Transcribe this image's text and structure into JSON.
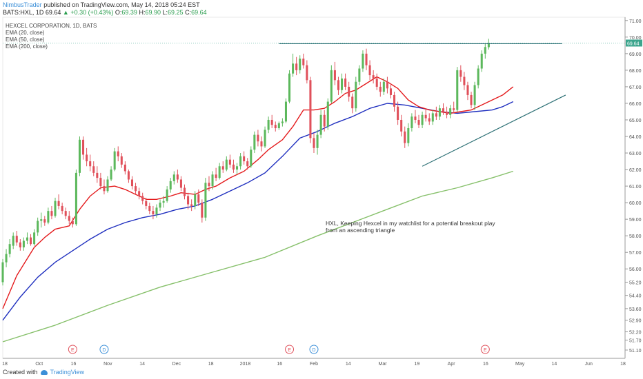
{
  "header": {
    "author": "NimbusTrader",
    "published_text": " published on TradingView.com, May 14, 2018 05:24 EST"
  },
  "ohlc": {
    "symbol": "BATS:HXL, 1D",
    "last": "69.64",
    "change": "▲ +0.30 (+0.43%)",
    "open_label": "O:",
    "open": "69.39",
    "high_label": "H:",
    "high": "69.90",
    "low_label": "L:",
    "low": "69.25",
    "close_label": "C:",
    "close": "69.64"
  },
  "legend": {
    "name": "HEXCEL CORPORATION, 1D, BATS",
    "ema20": "EMA (20, close)",
    "ema50": "EMA (50, close)",
    "ema200": "EMA (200, close)"
  },
  "footer": {
    "created_with": "Created with",
    "tv": "TradingView"
  },
  "colors": {
    "up": "#5cb85c",
    "down": "#e0505a",
    "ema20": "#e41a1c",
    "ema50": "#1f2fbf",
    "ema200": "#86c06a",
    "trend": "#2b6f74",
    "price": "#3ca58d"
  },
  "chart_data": {
    "type": "candlestick",
    "ylim": [
      50.6,
      71.2
    ],
    "y_ticks": [
      "71.00",
      "70.00",
      "69.00",
      "68.00",
      "67.00",
      "66.00",
      "65.00",
      "64.00",
      "63.00",
      "62.00",
      "61.00",
      "60.00",
      "59.00",
      "58.00",
      "57.00",
      "56.00",
      "55.20",
      "54.40",
      "53.60",
      "52.90",
      "52.20",
      "51.70",
      "51.10"
    ],
    "x_ticks": [
      "18",
      "Oct",
      "16",
      "Nov",
      "14",
      "Dec",
      "18",
      "2018",
      "16",
      "Feb",
      "14",
      "Mar",
      "19",
      "Apr",
      "16",
      "May",
      "14",
      "Jun",
      "18"
    ],
    "x_index_range": [
      0,
      178
    ],
    "price_label": "69.64",
    "annotation": "HXL, Keeping Hexcel in my watchlist for a potential breakout play\nfrom an ascending triangle",
    "events": [
      {
        "type": "E",
        "index": 20,
        "color": "#e0505a"
      },
      {
        "type": "D",
        "index": 29,
        "color": "#3b8fd8"
      },
      {
        "type": "E",
        "index": 82,
        "color": "#e0505a"
      },
      {
        "type": "D",
        "index": 89,
        "color": "#3b8fd8"
      },
      {
        "type": "E",
        "index": 138,
        "color": "#e0505a"
      }
    ],
    "resistance_line": {
      "from": [
        79,
        69.6
      ],
      "to": [
        160,
        69.6
      ]
    },
    "support_line": {
      "from": [
        120,
        62.2
      ],
      "to": [
        161,
        66.5
      ]
    },
    "candles": [
      [
        55.2,
        56.6,
        55.0,
        56.4
      ],
      [
        56.4,
        57.2,
        56.1,
        56.9
      ],
      [
        56.9,
        57.8,
        56.7,
        57.5
      ],
      [
        57.4,
        58.2,
        57.2,
        58.0
      ],
      [
        58.0,
        58.3,
        57.4,
        57.6
      ],
      [
        57.6,
        57.8,
        57.1,
        57.3
      ],
      [
        57.3,
        57.9,
        57.1,
        57.7
      ],
      [
        57.7,
        58.2,
        57.5,
        57.9
      ],
      [
        57.9,
        58.1,
        57.4,
        57.5
      ],
      [
        57.5,
        58.4,
        57.4,
        58.2
      ],
      [
        58.2,
        59.1,
        58.0,
        58.9
      ],
      [
        58.9,
        59.4,
        58.5,
        59.0
      ],
      [
        59.0,
        59.2,
        58.6,
        58.8
      ],
      [
        58.8,
        59.7,
        58.7,
        59.5
      ],
      [
        59.5,
        59.8,
        59.0,
        59.2
      ],
      [
        59.2,
        60.3,
        59.1,
        60.1
      ],
      [
        60.1,
        60.5,
        59.6,
        59.8
      ],
      [
        59.8,
        60.0,
        59.3,
        59.5
      ],
      [
        59.5,
        59.7,
        59.0,
        59.2
      ],
      [
        59.2,
        59.5,
        58.7,
        58.9
      ],
      [
        58.9,
        59.1,
        58.5,
        58.7
      ],
      [
        58.7,
        62.0,
        58.6,
        61.8
      ],
      [
        61.8,
        64.0,
        61.6,
        63.8
      ],
      [
        63.8,
        64.0,
        62.6,
        62.9
      ],
      [
        62.9,
        63.3,
        62.2,
        62.5
      ],
      [
        62.5,
        62.9,
        61.9,
        62.2
      ],
      [
        62.2,
        62.5,
        61.6,
        61.8
      ],
      [
        61.8,
        62.2,
        61.2,
        61.5
      ],
      [
        61.5,
        61.8,
        60.8,
        61.0
      ],
      [
        61.0,
        61.4,
        60.5,
        60.7
      ],
      [
        60.7,
        61.6,
        60.6,
        61.4
      ],
      [
        61.4,
        62.2,
        61.3,
        62.0
      ],
      [
        62.0,
        63.3,
        61.9,
        63.1
      ],
      [
        63.1,
        63.4,
        62.5,
        62.8
      ],
      [
        62.8,
        63.0,
        62.1,
        62.3
      ],
      [
        62.3,
        62.5,
        61.7,
        61.9
      ],
      [
        61.9,
        62.0,
        61.2,
        61.4
      ],
      [
        61.4,
        61.6,
        60.8,
        61.0
      ],
      [
        61.0,
        61.2,
        60.5,
        60.7
      ],
      [
        60.7,
        60.9,
        60.2,
        60.4
      ],
      [
        60.4,
        60.6,
        59.9,
        60.1
      ],
      [
        60.1,
        60.3,
        59.6,
        59.8
      ],
      [
        59.8,
        60.0,
        59.3,
        59.5
      ],
      [
        59.5,
        59.8,
        59.0,
        59.3
      ],
      [
        59.3,
        59.9,
        59.1,
        59.7
      ],
      [
        59.7,
        60.2,
        59.5,
        60.0
      ],
      [
        60.0,
        60.4,
        59.7,
        60.1
      ],
      [
        60.1,
        61.0,
        60.0,
        60.8
      ],
      [
        60.8,
        61.5,
        60.6,
        61.3
      ],
      [
        61.3,
        61.9,
        61.1,
        61.7
      ],
      [
        61.7,
        62.0,
        61.2,
        61.4
      ],
      [
        61.4,
        61.6,
        60.7,
        60.9
      ],
      [
        60.9,
        61.1,
        60.2,
        60.4
      ],
      [
        60.4,
        60.6,
        59.6,
        59.9
      ],
      [
        59.9,
        60.2,
        59.5,
        59.8
      ],
      [
        59.8,
        60.7,
        59.6,
        60.5
      ],
      [
        60.5,
        60.8,
        59.8,
        60.0
      ],
      [
        60.0,
        60.2,
        58.8,
        59.1
      ],
      [
        59.1,
        61.5,
        58.9,
        61.2
      ],
      [
        61.2,
        61.6,
        60.7,
        61.0
      ],
      [
        61.0,
        61.9,
        60.8,
        61.7
      ],
      [
        61.7,
        62.1,
        61.3,
        61.5
      ],
      [
        61.5,
        62.4,
        61.4,
        62.2
      ],
      [
        62.2,
        62.5,
        61.8,
        62.0
      ],
      [
        62.0,
        62.8,
        61.9,
        62.6
      ],
      [
        62.6,
        62.9,
        62.1,
        62.3
      ],
      [
        62.3,
        62.6,
        61.8,
        62.0
      ],
      [
        62.0,
        62.4,
        61.7,
        62.2
      ],
      [
        62.2,
        63.0,
        62.0,
        62.8
      ],
      [
        62.8,
        63.1,
        62.3,
        62.5
      ],
      [
        62.5,
        62.7,
        62.0,
        62.2
      ],
      [
        62.2,
        63.4,
        62.1,
        63.2
      ],
      [
        63.2,
        64.3,
        63.0,
        64.1
      ],
      [
        64.1,
        64.4,
        63.4,
        63.7
      ],
      [
        63.7,
        64.0,
        63.1,
        63.4
      ],
      [
        63.4,
        64.6,
        63.3,
        64.4
      ],
      [
        64.4,
        65.2,
        64.2,
        65.0
      ],
      [
        65.0,
        65.3,
        64.5,
        64.7
      ],
      [
        64.7,
        64.9,
        64.3,
        64.5
      ],
      [
        64.5,
        64.9,
        64.4,
        64.8
      ],
      [
        64.8,
        65.1,
        64.6,
        64.9
      ],
      [
        64.9,
        66.3,
        64.8,
        66.1
      ],
      [
        66.1,
        68.0,
        66.0,
        67.8
      ],
      [
        67.8,
        69.0,
        67.6,
        68.4
      ],
      [
        68.4,
        68.8,
        67.7,
        68.0
      ],
      [
        68.0,
        68.9,
        67.8,
        68.7
      ],
      [
        68.7,
        69.0,
        68.1,
        68.3
      ],
      [
        68.3,
        68.6,
        67.2,
        67.4
      ],
      [
        67.4,
        67.6,
        63.6,
        63.9
      ],
      [
        63.9,
        64.2,
        63.0,
        63.3
      ],
      [
        63.3,
        64.4,
        62.9,
        64.1
      ],
      [
        64.1,
        65.6,
        63.9,
        65.3
      ],
      [
        65.3,
        65.6,
        64.3,
        64.6
      ],
      [
        64.6,
        66.3,
        64.4,
        66.1
      ],
      [
        66.1,
        68.3,
        66.0,
        68.0
      ],
      [
        68.0,
        68.5,
        67.1,
        67.4
      ],
      [
        67.4,
        67.6,
        66.5,
        66.8
      ],
      [
        66.8,
        67.8,
        66.6,
        67.5
      ],
      [
        67.5,
        67.8,
        66.8,
        67.0
      ],
      [
        67.0,
        67.3,
        66.1,
        66.4
      ],
      [
        66.4,
        66.6,
        65.4,
        65.7
      ],
      [
        65.7,
        67.6,
        65.5,
        67.3
      ],
      [
        67.3,
        68.3,
        67.1,
        68.1
      ],
      [
        68.1,
        69.2,
        67.9,
        69.0
      ],
      [
        69.0,
        69.3,
        68.0,
        68.3
      ],
      [
        68.3,
        68.6,
        67.4,
        67.7
      ],
      [
        67.7,
        68.0,
        67.2,
        67.5
      ],
      [
        67.5,
        67.8,
        66.8,
        67.0
      ],
      [
        67.0,
        67.3,
        66.4,
        66.7
      ],
      [
        66.7,
        67.5,
        66.5,
        67.3
      ],
      [
        67.3,
        67.6,
        66.6,
        66.9
      ],
      [
        66.9,
        67.2,
        66.3,
        66.5
      ],
      [
        66.5,
        66.7,
        65.5,
        65.8
      ],
      [
        65.8,
        66.1,
        64.7,
        65.0
      ],
      [
        65.0,
        65.3,
        64.0,
        64.3
      ],
      [
        64.3,
        64.6,
        63.3,
        63.6
      ],
      [
        63.6,
        64.8,
        63.4,
        64.5
      ],
      [
        64.5,
        65.4,
        64.3,
        65.2
      ],
      [
        65.2,
        65.6,
        64.8,
        65.0
      ],
      [
        65.0,
        65.3,
        64.5,
        64.7
      ],
      [
        64.7,
        65.5,
        64.5,
        65.3
      ],
      [
        65.3,
        65.7,
        64.9,
        65.1
      ],
      [
        65.1,
        65.4,
        64.7,
        64.9
      ],
      [
        64.9,
        65.6,
        64.7,
        65.4
      ],
      [
        65.4,
        65.8,
        65.0,
        65.2
      ],
      [
        65.2,
        65.9,
        65.0,
        65.7
      ],
      [
        65.7,
        66.0,
        65.3,
        65.5
      ],
      [
        65.5,
        65.8,
        65.1,
        65.3
      ],
      [
        65.3,
        65.9,
        65.1,
        65.7
      ],
      [
        65.7,
        66.1,
        65.4,
        65.6
      ],
      [
        65.6,
        68.2,
        65.5,
        68.0
      ],
      [
        68.0,
        68.3,
        67.3,
        67.6
      ],
      [
        67.6,
        67.9,
        66.8,
        67.1
      ],
      [
        67.1,
        67.3,
        66.2,
        66.5
      ],
      [
        66.5,
        66.7,
        65.7,
        65.9
      ],
      [
        65.9,
        67.3,
        65.6,
        67.1
      ],
      [
        67.1,
        68.3,
        66.9,
        68.1
      ],
      [
        68.1,
        69.2,
        67.9,
        69.0
      ],
      [
        69.0,
        69.6,
        68.7,
        69.4
      ],
      [
        69.39,
        69.9,
        69.25,
        69.64
      ]
    ],
    "ema20": [
      [
        0,
        53.6
      ],
      [
        4,
        55.6
      ],
      [
        9,
        57.3
      ],
      [
        12,
        57.9
      ],
      [
        15,
        58.4
      ],
      [
        19,
        58.6
      ],
      [
        22,
        59.6
      ],
      [
        25,
        60.4
      ],
      [
        28,
        60.9
      ],
      [
        32,
        61.0
      ],
      [
        35,
        60.8
      ],
      [
        38,
        60.5
      ],
      [
        41,
        60.2
      ],
      [
        44,
        60.2
      ],
      [
        48,
        60.4
      ],
      [
        51,
        60.6
      ],
      [
        55,
        60.5
      ],
      [
        58,
        60.8
      ],
      [
        61,
        61.0
      ],
      [
        65,
        61.5
      ],
      [
        69,
        61.9
      ],
      [
        73,
        62.6
      ],
      [
        76,
        63.2
      ],
      [
        80,
        63.8
      ],
      [
        83,
        64.6
      ],
      [
        86,
        65.6
      ],
      [
        89,
        65.6
      ],
      [
        92,
        65.7
      ],
      [
        95,
        66.1
      ],
      [
        98,
        66.6
      ],
      [
        101,
        66.8
      ],
      [
        104,
        67.2
      ],
      [
        107,
        67.6
      ],
      [
        110,
        67.3
      ],
      [
        113,
        66.9
      ],
      [
        116,
        66.2
      ],
      [
        119,
        65.8
      ],
      [
        122,
        65.6
      ],
      [
        125,
        65.5
      ],
      [
        128,
        65.4
      ],
      [
        131,
        65.5
      ],
      [
        134,
        65.6
      ],
      [
        137,
        65.9
      ],
      [
        140,
        66.2
      ],
      [
        143,
        66.5
      ],
      [
        146,
        67.0
      ]
    ],
    "ema50": [
      [
        0,
        52.9
      ],
      [
        5,
        54.3
      ],
      [
        10,
        55.5
      ],
      [
        15,
        56.4
      ],
      [
        20,
        57.1
      ],
      [
        25,
        57.8
      ],
      [
        30,
        58.4
      ],
      [
        35,
        58.8
      ],
      [
        40,
        59.1
      ],
      [
        45,
        59.3
      ],
      [
        50,
        59.6
      ],
      [
        55,
        59.8
      ],
      [
        60,
        60.2
      ],
      [
        65,
        60.7
      ],
      [
        70,
        61.2
      ],
      [
        75,
        61.8
      ],
      [
        80,
        62.8
      ],
      [
        85,
        63.9
      ],
      [
        90,
        64.3
      ],
      [
        95,
        64.8
      ],
      [
        100,
        65.2
      ],
      [
        105,
        65.7
      ],
      [
        110,
        66.0
      ],
      [
        115,
        65.9
      ],
      [
        120,
        65.7
      ],
      [
        125,
        65.5
      ],
      [
        130,
        65.4
      ],
      [
        135,
        65.5
      ],
      [
        140,
        65.6
      ],
      [
        143,
        65.8
      ],
      [
        146,
        66.1
      ]
    ],
    "ema200": [
      [
        0,
        51.6
      ],
      [
        15,
        52.6
      ],
      [
        30,
        53.8
      ],
      [
        45,
        54.9
      ],
      [
        60,
        55.8
      ],
      [
        75,
        56.7
      ],
      [
        90,
        58.0
      ],
      [
        100,
        58.8
      ],
      [
        110,
        59.6
      ],
      [
        120,
        60.4
      ],
      [
        130,
        60.9
      ],
      [
        140,
        61.5
      ],
      [
        146,
        61.9
      ]
    ]
  }
}
